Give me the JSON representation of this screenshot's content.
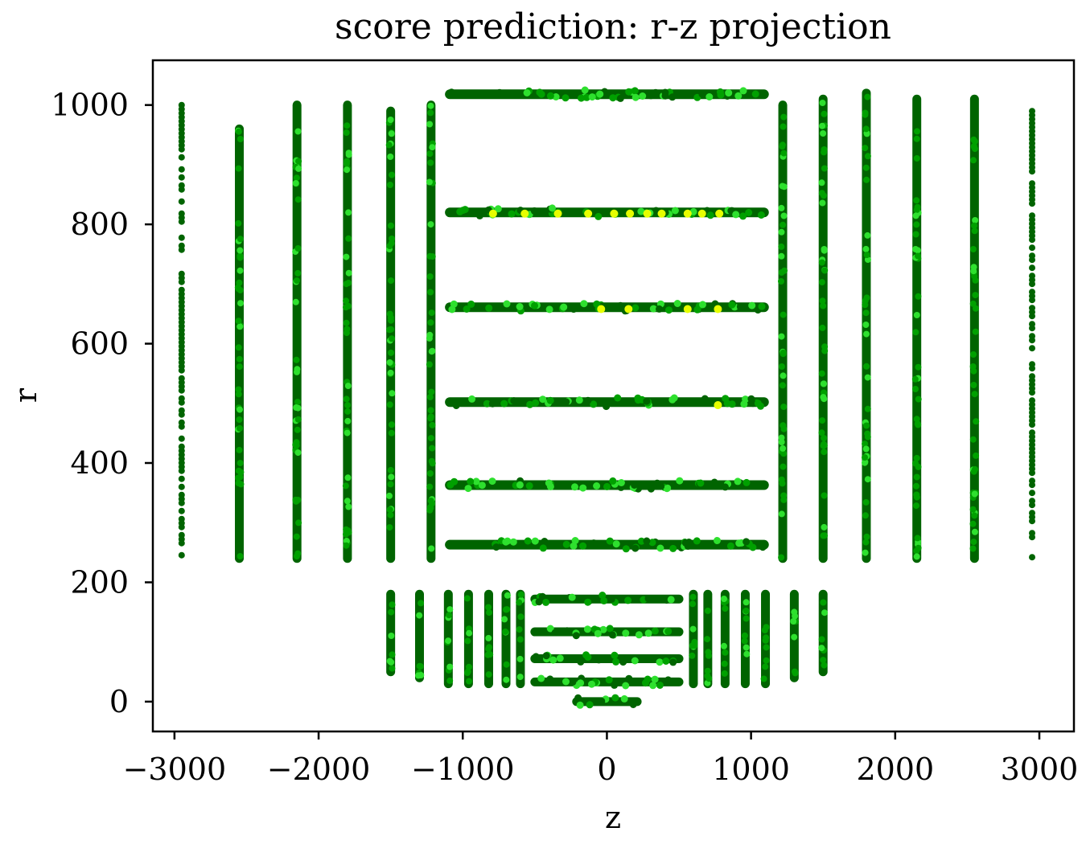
{
  "chart_data": {
    "type": "scatter",
    "title": "score prediction: r-z projection",
    "xlabel": "z",
    "ylabel": "r",
    "xlim": [
      -3150,
      3240
    ],
    "ylim": [
      -50,
      1075
    ],
    "xticks": [
      -3000,
      -2000,
      -1000,
      0,
      1000,
      2000,
      3000
    ],
    "xtick_labels": [
      "−3000",
      "−2000",
      "−1000",
      "0",
      "1000",
      "2000",
      "3000"
    ],
    "yticks": [
      0,
      200,
      400,
      600,
      800,
      1000
    ],
    "ytick_labels": [
      "0",
      "200",
      "400",
      "600",
      "800",
      "1000"
    ],
    "grid": false,
    "legend": "none",
    "colors": {
      "low": "#006400",
      "mid": "#00a000",
      "high": "#2ee02e",
      "top": "#e6ff00"
    },
    "series": [
      {
        "kind": "barrel",
        "description_values": "horizontal strips: fixed r, z span",
        "strips": [
          {
            "r": 1018,
            "z": [
              -1090,
              1090
            ]
          },
          {
            "r": 820,
            "z": [
              -1090,
              1090
            ]
          },
          {
            "r": 661,
            "z": [
              -1090,
              1090
            ]
          },
          {
            "r": 502,
            "z": [
              -1090,
              1090
            ]
          },
          {
            "r": 363,
            "z": [
              -1090,
              1090
            ]
          },
          {
            "r": 263,
            "z": [
              -1090,
              1090
            ]
          },
          {
            "r": 172,
            "z": [
              -500,
              500
            ]
          },
          {
            "r": 117,
            "z": [
              -500,
              500
            ]
          },
          {
            "r": 72,
            "z": [
              -500,
              500
            ]
          },
          {
            "r": 33,
            "z": [
              -500,
              500
            ]
          },
          {
            "r": 0,
            "z": [
              -210,
              210
            ]
          }
        ]
      },
      {
        "kind": "endcap",
        "description_values": "vertical strips: fixed z, r span",
        "strips": [
          {
            "z": -2950,
            "r": [
              240,
              1000
            ]
          },
          {
            "z": -2550,
            "r": [
              240,
              960
            ]
          },
          {
            "z": -2150,
            "r": [
              240,
              1000
            ]
          },
          {
            "z": -1800,
            "r": [
              240,
              1000
            ]
          },
          {
            "z": -1500,
            "r": [
              240,
              990
            ]
          },
          {
            "z": -1220,
            "r": [
              240,
              1000
            ]
          },
          {
            "z": 1220,
            "r": [
              240,
              1000
            ]
          },
          {
            "z": 1500,
            "r": [
              240,
              1010
            ]
          },
          {
            "z": 1800,
            "r": [
              240,
              1020
            ]
          },
          {
            "z": 2150,
            "r": [
              240,
              1010
            ]
          },
          {
            "z": 2550,
            "r": [
              240,
              1010
            ]
          },
          {
            "z": 2950,
            "r": [
              240,
              1010
            ]
          },
          {
            "z": -1500,
            "r": [
              50,
              180
            ]
          },
          {
            "z": -1300,
            "r": [
              40,
              180
            ]
          },
          {
            "z": -1100,
            "r": [
              30,
              180
            ]
          },
          {
            "z": -960,
            "r": [
              30,
              180
            ]
          },
          {
            "z": -820,
            "r": [
              30,
              180
            ]
          },
          {
            "z": -700,
            "r": [
              30,
              180
            ]
          },
          {
            "z": -600,
            "r": [
              30,
              180
            ]
          },
          {
            "z": 600,
            "r": [
              30,
              180
            ]
          },
          {
            "z": 700,
            "r": [
              30,
              180
            ]
          },
          {
            "z": 820,
            "r": [
              30,
              180
            ]
          },
          {
            "z": 960,
            "r": [
              30,
              180
            ]
          },
          {
            "z": 1100,
            "r": [
              30,
              180
            ]
          },
          {
            "z": 1300,
            "r": [
              40,
              180
            ]
          },
          {
            "z": 1500,
            "r": [
              50,
              180
            ]
          }
        ]
      },
      {
        "kind": "high_score_points",
        "points": [
          {
            "z": -790,
            "r": 818
          },
          {
            "z": -570,
            "r": 818
          },
          {
            "z": -340,
            "r": 818
          },
          {
            "z": -130,
            "r": 818
          },
          {
            "z": 50,
            "r": 818
          },
          {
            "z": 160,
            "r": 818
          },
          {
            "z": 280,
            "r": 818
          },
          {
            "z": 380,
            "r": 818
          },
          {
            "z": 560,
            "r": 818
          },
          {
            "z": 660,
            "r": 818
          },
          {
            "z": 780,
            "r": 818
          },
          {
            "z": -40,
            "r": 658
          },
          {
            "z": 150,
            "r": 658
          },
          {
            "z": 560,
            "r": 658
          },
          {
            "z": 770,
            "r": 658
          },
          {
            "z": 770,
            "r": 497
          }
        ]
      }
    ]
  }
}
